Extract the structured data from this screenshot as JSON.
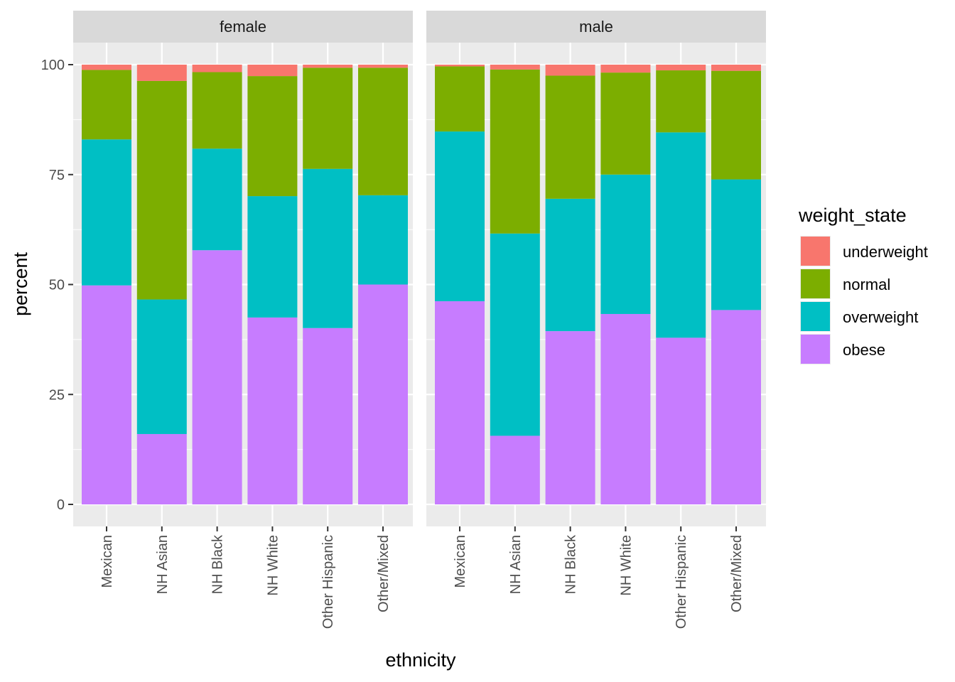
{
  "chart_data": {
    "type": "bar",
    "stacked": true,
    "xlabel": "ethnicity",
    "ylabel": "percent",
    "ylim": [
      0,
      100
    ],
    "yticks": [
      0,
      25,
      50,
      75,
      100
    ],
    "grid": true,
    "legend_position": "right",
    "legend_title": "weight_state",
    "categories": [
      "Mexican",
      "NH Asian",
      "NH Black",
      "NH White",
      "Other Hispanic",
      "Other/Mixed"
    ],
    "series": [
      {
        "name": "underweight",
        "color": "#F8766D"
      },
      {
        "name": "normal",
        "color": "#7CAE00"
      },
      {
        "name": "overweight",
        "color": "#00BFC4"
      },
      {
        "name": "obese",
        "color": "#C77CFF"
      }
    ],
    "panels": [
      {
        "label": "female",
        "values": {
          "obese": [
            49.8,
            16.0,
            57.8,
            42.5,
            40.1,
            50.0
          ],
          "overweight": [
            33.2,
            30.6,
            23.1,
            27.6,
            36.2,
            20.3
          ],
          "normal": [
            15.8,
            49.7,
            17.4,
            27.3,
            23.0,
            29.0
          ],
          "underweight": [
            1.2,
            3.7,
            1.7,
            2.6,
            0.7,
            0.7
          ]
        }
      },
      {
        "label": "male",
        "values": {
          "obese": [
            46.2,
            15.6,
            39.4,
            43.3,
            37.9,
            44.2
          ],
          "overweight": [
            38.6,
            46.0,
            30.1,
            31.7,
            46.7,
            29.7
          ],
          "normal": [
            14.8,
            37.3,
            28.0,
            23.2,
            14.1,
            24.7
          ],
          "underweight": [
            0.4,
            1.1,
            2.5,
            1.8,
            1.3,
            1.4
          ]
        }
      }
    ]
  },
  "colors": {
    "panel_background": "#EBEBEB",
    "strip_background": "#D9D9D9",
    "grid": "#FFFFFF"
  }
}
